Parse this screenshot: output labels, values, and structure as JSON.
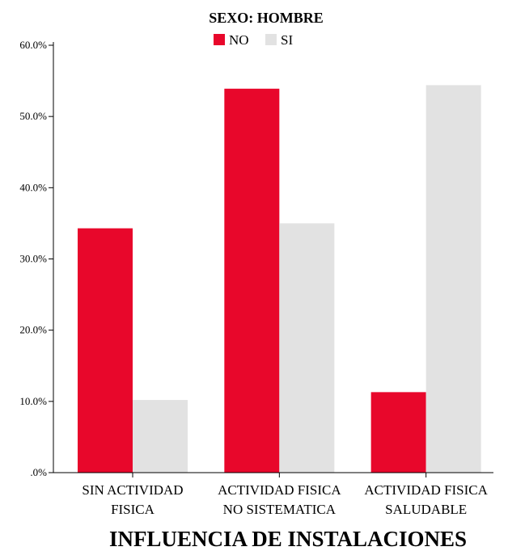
{
  "chart_data": {
    "type": "bar",
    "title": "SEXO: HOMBRE",
    "xlabel": "INFLUENCIA DE INSTALACIONES",
    "ylabel": "",
    "ylim": [
      0,
      60
    ],
    "yticks": [
      0,
      10,
      20,
      30,
      40,
      50,
      60
    ],
    "ytick_labels": [
      ".0%",
      "10.0%",
      "20.0%",
      "30.0%",
      "40.0%",
      "50.0%",
      "60.0%"
    ],
    "categories": [
      [
        "SIN ACTIVIDAD",
        "FISICA"
      ],
      [
        "ACTIVIDAD FISICA",
        "NO SISTEMATICA"
      ],
      [
        "ACTIVIDAD FISICA",
        "SALUDABLE"
      ]
    ],
    "series": [
      {
        "name": "NO",
        "color": "#E8072B",
        "values": [
          34.3,
          53.9,
          11.3
        ]
      },
      {
        "name": "SI",
        "color": "#E2E2E2",
        "values": [
          10.2,
          35.0,
          54.4
        ]
      }
    ],
    "grid": false,
    "legend": "top-center"
  }
}
